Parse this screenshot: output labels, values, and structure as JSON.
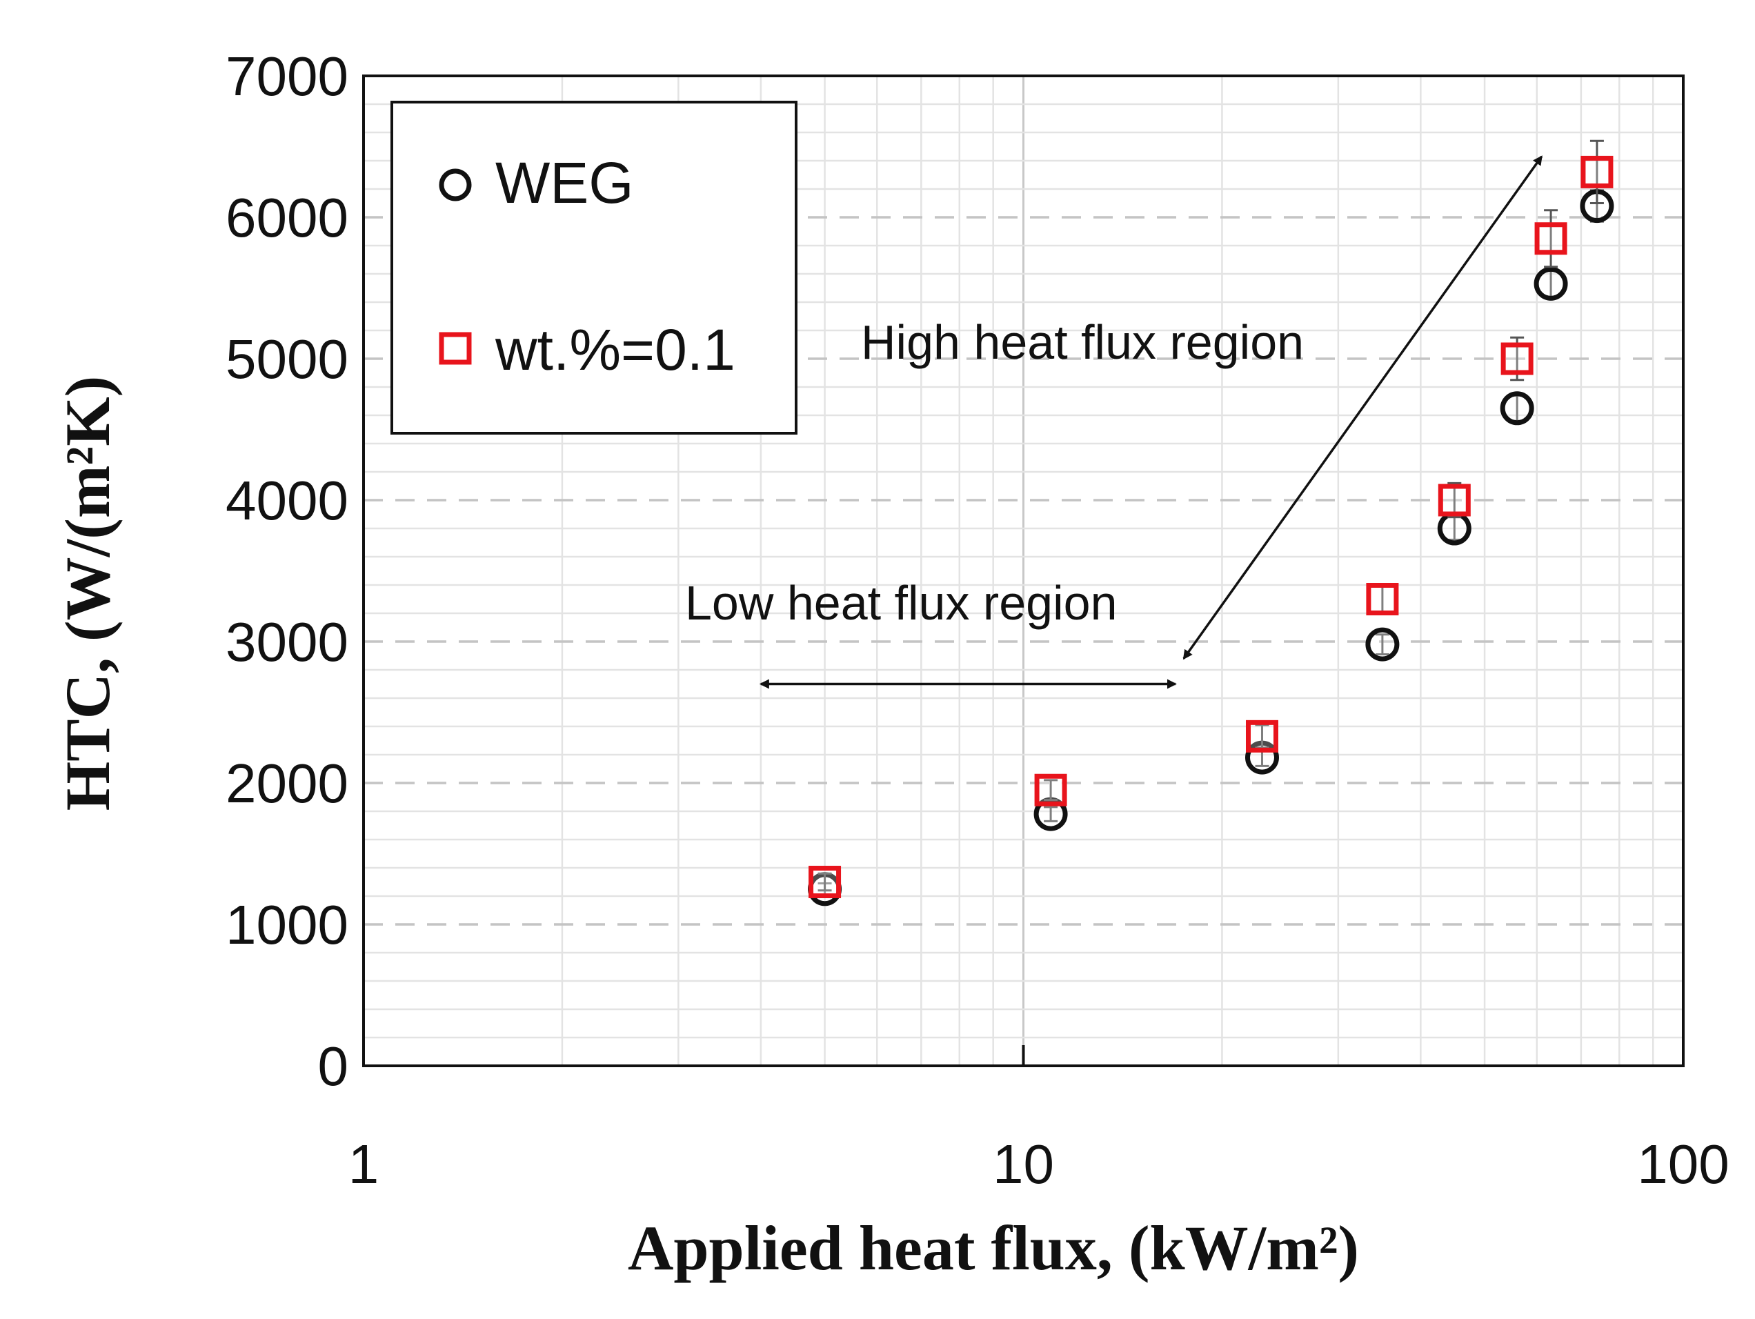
{
  "chart_data": {
    "type": "scatter",
    "title": "",
    "xlabel": "Applied heat flux, (kW/m²)",
    "ylabel": "HTC, (W/(m²K)",
    "x_scale": "log",
    "xlim": [
      1,
      100
    ],
    "ylim": [
      0,
      7000
    ],
    "x_ticks": [
      1,
      10,
      100
    ],
    "x_tick_labels": [
      "1",
      "10",
      "100"
    ],
    "y_ticks": [
      0,
      1000,
      2000,
      3000,
      4000,
      5000,
      6000,
      7000
    ],
    "y_tick_labels": [
      "0",
      "1000",
      "2000",
      "3000",
      "4000",
      "5000",
      "6000",
      "7000"
    ],
    "grid": true,
    "legend_position": "top-left",
    "series": [
      {
        "name": "WEG",
        "marker": "circle",
        "color": "#111111",
        "x": [
          5,
          11,
          23,
          35,
          45,
          56,
          63,
          74
        ],
        "y": [
          1250,
          1780,
          2180,
          2980,
          3800,
          4650,
          5530,
          6080
        ],
        "error": [
          40,
          50,
          60,
          70,
          80,
          90,
          100,
          110
        ]
      },
      {
        "name": "wt.%=0.1",
        "marker": "square",
        "color": "#e8141c",
        "x": [
          5,
          11,
          23,
          35,
          45,
          56,
          63,
          74
        ],
        "y": [
          1300,
          1950,
          2330,
          3300,
          4000,
          5000,
          5850,
          6320
        ],
        "error": [
          60,
          70,
          80,
          90,
          120,
          150,
          200,
          220
        ]
      }
    ],
    "annotations": [
      {
        "text": "High heat flux region",
        "arrow_from": [
          17.5,
          2880
        ],
        "arrow_to": [
          61,
          6430
        ],
        "double_headed": true
      },
      {
        "text": "Low heat flux region",
        "arrow_from": [
          4,
          2700
        ],
        "arrow_to": [
          17,
          2700
        ],
        "double_headed": true
      }
    ]
  }
}
